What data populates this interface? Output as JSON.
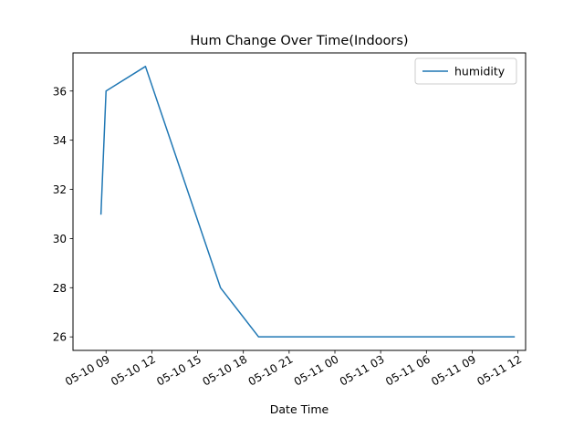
{
  "chart_data": {
    "type": "line",
    "title": "Hum Change Over Time(Indoors)",
    "xlabel": "Date Time",
    "ylabel": "",
    "xlim": [
      "2024-05-10 06:50",
      "2024-05-11 12:30"
    ],
    "ylim": [
      25.45,
      37.55
    ],
    "x_tick_labels": [
      "05-10 09",
      "05-10 12",
      "05-10 15",
      "05-10 18",
      "05-10 21",
      "05-11 00",
      "05-11 03",
      "05-11 06",
      "05-11 09",
      "05-11 12"
    ],
    "x_tick_values": [
      "2024-05-10 09:00",
      "2024-05-10 12:00",
      "2024-05-10 15:00",
      "2024-05-10 18:00",
      "2024-05-10 21:00",
      "2024-05-11 00:00",
      "2024-05-11 03:00",
      "2024-05-11 06:00",
      "2024-05-11 09:00",
      "2024-05-11 12:00"
    ],
    "y_ticks": [
      26,
      28,
      30,
      32,
      34,
      36
    ],
    "grid": false,
    "legend_position": "upper right",
    "series": [
      {
        "name": "humidity",
        "color": "#1f77b4",
        "x": [
          "2024-05-10 08:40",
          "2024-05-10 09:00",
          "2024-05-10 11:35",
          "2024-05-10 16:30",
          "2024-05-10 19:00",
          "2024-05-11 11:45"
        ],
        "y": [
          31,
          36,
          37,
          28,
          26,
          26
        ]
      }
    ]
  }
}
